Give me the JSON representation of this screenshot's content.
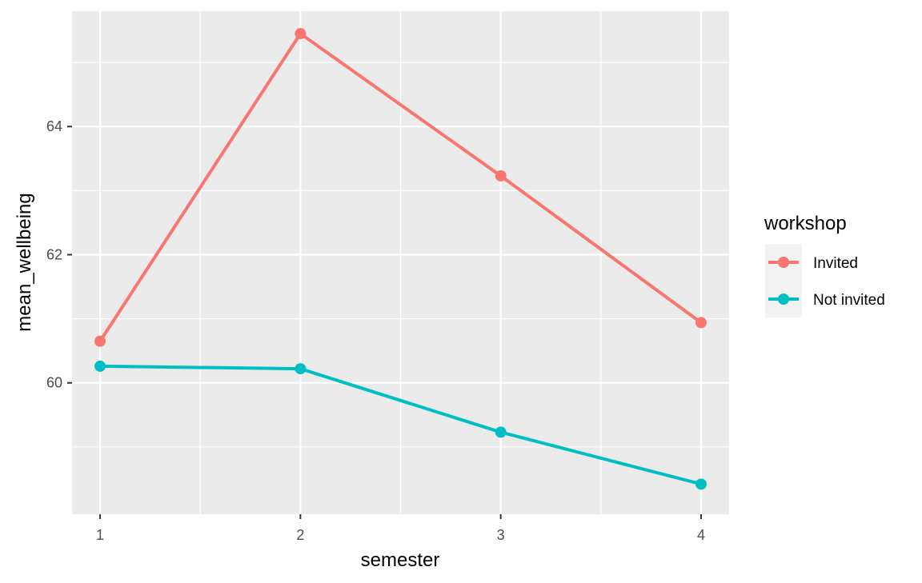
{
  "chart_data": {
    "type": "line",
    "x": [
      1,
      2,
      3,
      4
    ],
    "series": [
      {
        "name": "Invited",
        "values": [
          60.65,
          65.45,
          63.23,
          60.94
        ],
        "color": "#F8766D"
      },
      {
        "name": "Not invited",
        "values": [
          60.26,
          60.22,
          59.23,
          58.42
        ],
        "color": "#00BFC4"
      }
    ],
    "xlabel": "semester",
    "ylabel": "mean_wellbeing",
    "xlim": [
      0.86,
      4.14
    ],
    "ylim": [
      57.95,
      65.8
    ],
    "x_ticks": [
      1,
      2,
      3,
      4
    ],
    "x_tick_labels": [
      "1",
      "2",
      "3",
      "4"
    ],
    "y_ticks": [
      60,
      62,
      64
    ],
    "y_tick_labels": [
      "60",
      "62",
      "64"
    ],
    "grid": true,
    "legend": {
      "title": "workshop",
      "position": "right"
    },
    "colors": {
      "panel": "#EBEBEB",
      "grid": "#FFFFFF"
    }
  }
}
